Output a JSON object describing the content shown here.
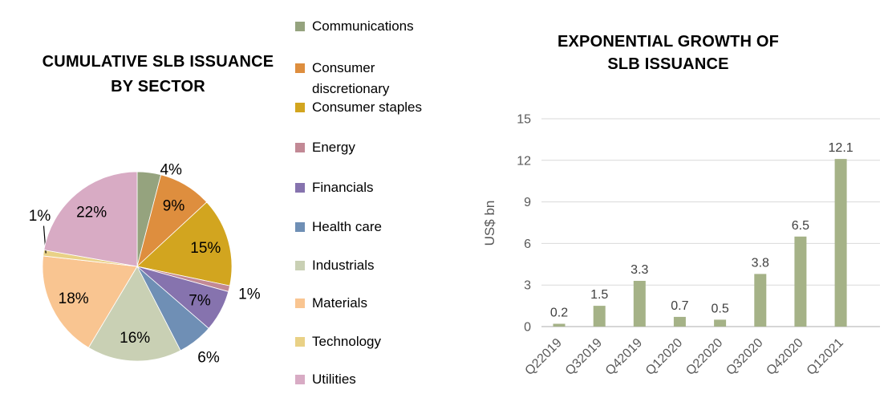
{
  "figure": {
    "background": "#ffffff"
  },
  "chart_data": [
    {
      "type": "pie",
      "title": "CUMULATIVE SLB ISSUANCE BY SECTOR",
      "title_lines": [
        "CUMULATIVE SLB ISSUANCE",
        "BY SECTOR"
      ],
      "legend_position": "right",
      "start_angle": "top",
      "direction": "clockwise",
      "slices": [
        {
          "label": "Communications",
          "value": 4,
          "pct_label": "4%",
          "color": "#95a37e",
          "label_inside": false,
          "label_offset": [
            24,
            22
          ]
        },
        {
          "label": "Consumer discretionary",
          "value": 9,
          "pct_label": "9%",
          "color": "#de8e3e",
          "label_inside": true
        },
        {
          "label": "Consumer staples",
          "value": 15,
          "pct_label": "15%",
          "color": "#d2a51f",
          "label_inside": true
        },
        {
          "label": "Energy",
          "value": 1,
          "pct_label": "1%",
          "color": "#c28995",
          "label_inside": false
        },
        {
          "label": "Financials",
          "value": 7,
          "pct_label": "7%",
          "color": "#8673ae",
          "label_inside": true
        },
        {
          "label": "Health care",
          "value": 6,
          "pct_label": "6%",
          "color": "#6f8fb5",
          "label_inside": false
        },
        {
          "label": "Industrials",
          "value": 16,
          "pct_label": "16%",
          "color": "#c9d0b4",
          "label_inside": true
        },
        {
          "label": "Materials",
          "value": 18,
          "pct_label": "18%",
          "color": "#f9c591",
          "label_inside": true
        },
        {
          "label": "Technology",
          "value": 1,
          "pct_label": "1%",
          "color": "#e9d186",
          "label_inside": false,
          "leader": true,
          "label_offset": [
            21,
            -43
          ]
        },
        {
          "label": "Utilities",
          "value": 22,
          "pct_label": "22%",
          "color": "#d8abc4",
          "label_inside": true
        }
      ]
    },
    {
      "type": "bar",
      "title": "EXPONENTIAL GROWTH OF SLB ISSUANCE",
      "title_lines": [
        "EXPONENTIAL GROWTH OF",
        "SLB ISSUANCE"
      ],
      "ylabel": "US$ bn",
      "categories": [
        "Q22019",
        "Q32019",
        "Q42019",
        "Q12020",
        "Q22020",
        "Q32020",
        "Q42020",
        "Q12021"
      ],
      "values": [
        0.2,
        1.5,
        3.3,
        0.7,
        0.5,
        3.8,
        6.5,
        12.1
      ],
      "value_labels": [
        "0.2",
        "1.5",
        "3.3",
        "0.7",
        "0.5",
        "3.8",
        "6.5",
        "12.1"
      ],
      "yticks": [
        0,
        3,
        6,
        9,
        12,
        15
      ],
      "ylim": [
        0,
        15
      ],
      "grid": true,
      "bar_color": "#a5b287",
      "gridline_color": "#d9d9d9",
      "axis_line_color": "#c9c9c9",
      "axis_text_color": "#595959",
      "value_label_color": "#404040"
    }
  ]
}
